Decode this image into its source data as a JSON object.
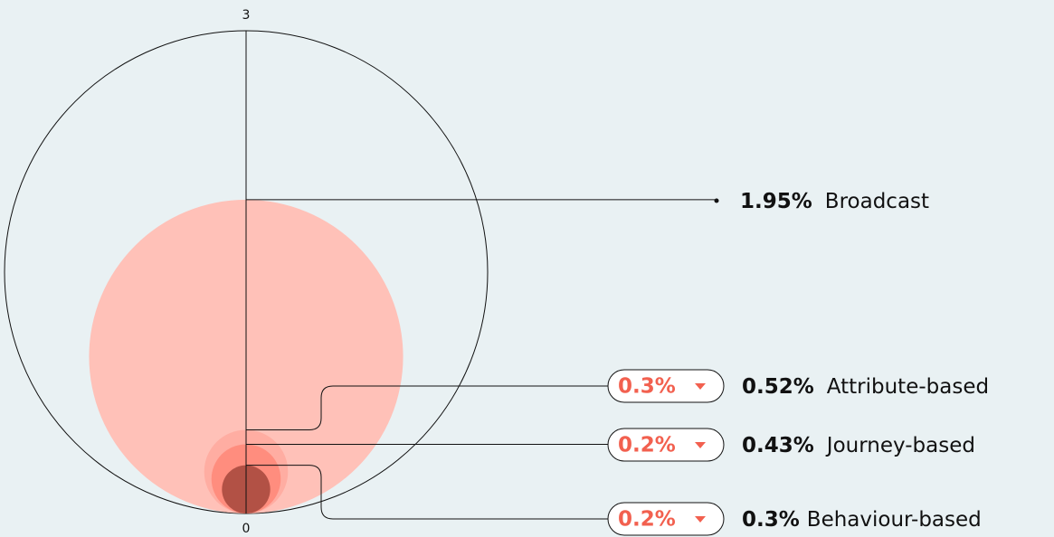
{
  "chart_data": {
    "type": "bubble",
    "categories": [
      "Broadcast",
      "Attribute-based",
      "Journey-based",
      "Behaviour-based"
    ],
    "values": [
      1.95,
      0.52,
      0.43,
      0.3
    ],
    "value_labels": [
      "1.95%",
      "0.52%",
      "0.43%",
      "0.3%"
    ],
    "colors": [
      "#ffc1b8",
      "#ffa99d",
      "#ff8778",
      "#a5473b"
    ],
    "changes": [
      null,
      0.3,
      0.2,
      0.2
    ],
    "change_labels": [
      null,
      "0.3%",
      "0.2%",
      "0.2%"
    ],
    "change_color": "#f2604f",
    "ylim": [
      0,
      3
    ],
    "yticks": [
      0,
      3
    ]
  }
}
